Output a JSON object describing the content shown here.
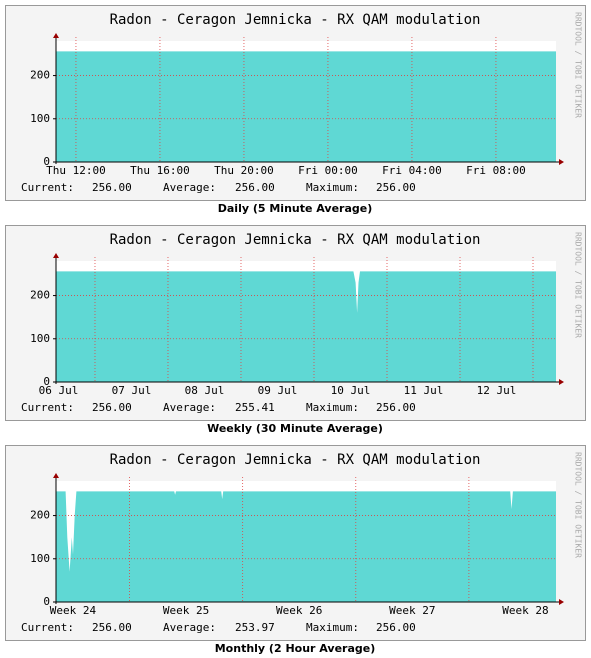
{
  "chart_data": [
    {
      "type": "area",
      "title": "Radon - Ceragon Jemnicka - RX QAM modulation",
      "watermark": "RRDTOOL / TOBI OETIKER",
      "caption": "Daily (5 Minute Average)",
      "x": [
        -0.95,
        22.86
      ],
      "series": [
        {
          "color": "#5fd8d4",
          "values": [
            256,
            256
          ]
        }
      ],
      "xlim": [
        -0.95,
        22.86
      ],
      "xticks": [
        {
          "value": 0,
          "label": "Thu 12:00"
        },
        {
          "value": 4,
          "label": "Thu 16:00"
        },
        {
          "value": 8,
          "label": "Thu 20:00"
        },
        {
          "value": 12,
          "label": "Fri 00:00"
        },
        {
          "value": 16,
          "label": "Fri 04:00"
        },
        {
          "value": 20,
          "label": "Fri 08:00"
        }
      ],
      "xgrid": [
        0,
        4,
        8,
        12,
        16,
        20
      ],
      "ylim": [
        0,
        280
      ],
      "yticks": [
        0,
        100,
        200
      ],
      "grid": true,
      "stats": [
        {
          "label": "Current:",
          "value": "256.00"
        },
        {
          "label": "Average:",
          "value": "256.00"
        },
        {
          "label": "Maximum:",
          "value": "256.00"
        }
      ]
    },
    {
      "type": "area",
      "title": "Radon - Ceragon Jemnicka - RX QAM modulation",
      "watermark": "RRDTOOL / TOBI OETIKER",
      "caption": "Weekly (30 Minute Average)",
      "x": [
        0.466,
        4.54,
        4.57,
        4.59,
        4.61,
        4.63,
        7.315
      ],
      "series": [
        {
          "color": "#5fd8d4",
          "values": [
            256,
            256,
            230,
            160,
            230,
            256,
            256
          ]
        }
      ],
      "xlim": [
        0.466,
        7.315
      ],
      "xticks": [
        {
          "value": 0.5,
          "label": "06 Jul"
        },
        {
          "value": 1.5,
          "label": "07 Jul"
        },
        {
          "value": 2.5,
          "label": "08 Jul"
        },
        {
          "value": 3.5,
          "label": "09 Jul"
        },
        {
          "value": 4.5,
          "label": "10 Jul"
        },
        {
          "value": 5.5,
          "label": "11 Jul"
        },
        {
          "value": 6.5,
          "label": "12 Jul"
        }
      ],
      "xgrid": [
        1,
        2,
        3,
        4,
        5,
        6,
        7
      ],
      "ylim": [
        0,
        280
      ],
      "yticks": [
        0,
        100,
        200
      ],
      "grid": true,
      "stats": [
        {
          "label": "Current:",
          "value": "256.00"
        },
        {
          "label": "Average:",
          "value": "255.41"
        },
        {
          "label": "Maximum:",
          "value": "256.00"
        }
      ]
    },
    {
      "type": "area",
      "title": "Radon - Ceragon Jemnicka - RX QAM modulation",
      "watermark": "RRDTOOL / TOBI OETIKER",
      "caption": "Monthly (2 Hour Average)",
      "x": [
        24.35,
        24.435,
        24.45,
        24.47,
        24.49,
        24.5,
        24.515,
        24.53,
        25.395,
        25.403,
        25.411,
        25.81,
        25.819,
        25.828,
        28.365,
        28.377,
        28.389,
        28.77
      ],
      "series": [
        {
          "color": "#5fd8d4",
          "values": [
            256,
            256,
            150,
            70,
            150,
            110,
            200,
            256,
            256,
            248,
            256,
            256,
            238,
            256,
            256,
            215,
            256,
            256
          ]
        }
      ],
      "xlim": [
        24.35,
        28.77
      ],
      "xticks": [
        {
          "value": 24.5,
          "label": "Week 24"
        },
        {
          "value": 25.5,
          "label": "Week 25"
        },
        {
          "value": 26.5,
          "label": "Week 26"
        },
        {
          "value": 27.5,
          "label": "Week 27"
        },
        {
          "value": 28.5,
          "label": "Week 28"
        }
      ],
      "xgrid": [
        25,
        26,
        27,
        28
      ],
      "ylim": [
        0,
        280
      ],
      "yticks": [
        0,
        100,
        200
      ],
      "grid": true,
      "stats": [
        {
          "label": "Current:",
          "value": "256.00"
        },
        {
          "label": "Average:",
          "value": "253.97"
        },
        {
          "label": "Maximum:",
          "value": "256.00"
        }
      ]
    }
  ]
}
